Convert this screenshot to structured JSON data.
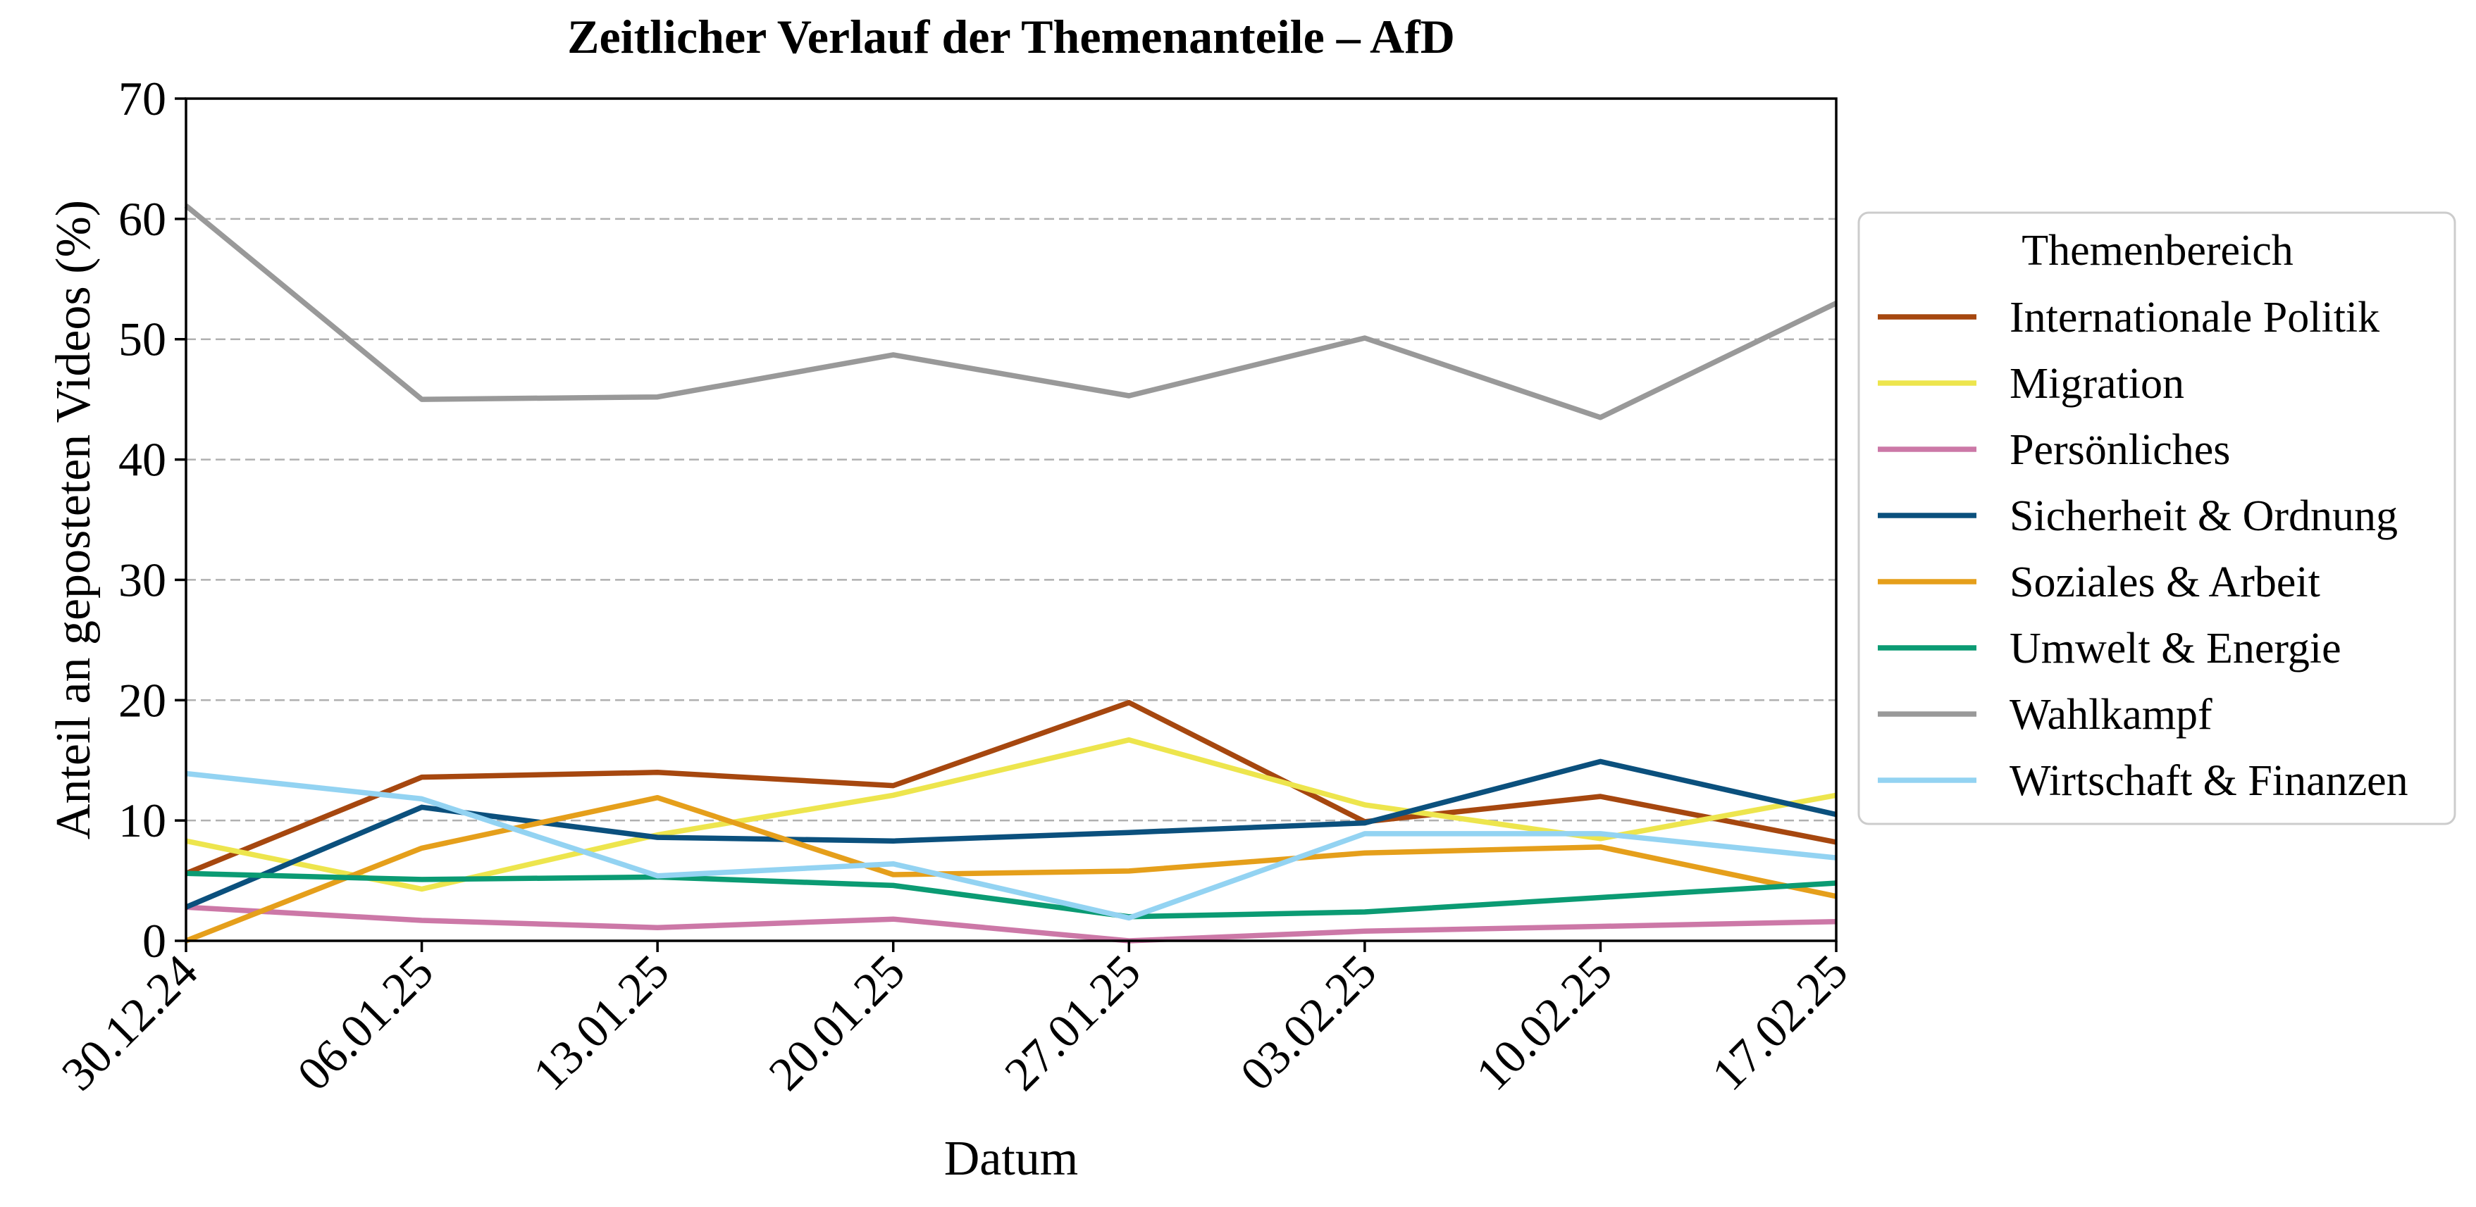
{
  "chart_data": {
    "type": "line",
    "title": "Zeitlicher Verlauf der Themenanteile – AfD",
    "xlabel": "Datum",
    "ylabel": "Anteil an geposteten Videos (%)",
    "x": [
      "30.12.24",
      "06.01.25",
      "13.01.25",
      "20.01.25",
      "27.01.25",
      "03.02.25",
      "10.02.25",
      "17.02.25"
    ],
    "ylim": [
      0,
      70
    ],
    "yticks": [
      0,
      10,
      20,
      30,
      40,
      50,
      60,
      70
    ],
    "grid": "horizontal, dashed",
    "legend": {
      "title": "Themenbereich",
      "placement": "right, outside"
    },
    "series": [
      {
        "name": "Internationale Politik",
        "color": "#a6470f",
        "values": [
          5.6,
          13.6,
          14.0,
          12.9,
          19.8,
          9.9,
          12.0,
          8.2
        ]
      },
      {
        "name": "Migration",
        "color": "#ede54d",
        "values": [
          8.3,
          4.3,
          8.8,
          12.1,
          16.7,
          11.3,
          8.5,
          12.1
        ]
      },
      {
        "name": "Persönliches",
        "color": "#cc78a7",
        "values": [
          2.8,
          1.7,
          1.1,
          1.8,
          0.0,
          0.8,
          1.2,
          1.6
        ]
      },
      {
        "name": "Sicherheit & Ordnung",
        "color": "#0b507d",
        "values": [
          2.8,
          11.1,
          8.6,
          8.3,
          9.0,
          9.8,
          14.9,
          10.5
        ]
      },
      {
        "name": "Soziales & Arbeit",
        "color": "#e59f1b",
        "values": [
          0.0,
          7.7,
          11.9,
          5.5,
          5.8,
          7.3,
          7.8,
          3.7
        ]
      },
      {
        "name": "Umwelt & Energie",
        "color": "#0b9b73",
        "values": [
          5.6,
          5.1,
          5.3,
          4.6,
          2.0,
          2.4,
          3.6,
          4.8
        ]
      },
      {
        "name": "Wahlkampf",
        "color": "#999999",
        "values": [
          61.1,
          45.0,
          45.2,
          48.7,
          45.3,
          50.1,
          43.5,
          53.0
        ]
      },
      {
        "name": "Wirtschaft & Finanzen",
        "color": "#93d3f2",
        "values": [
          13.9,
          11.8,
          5.4,
          6.4,
          1.9,
          8.9,
          8.9,
          6.9
        ]
      }
    ]
  }
}
